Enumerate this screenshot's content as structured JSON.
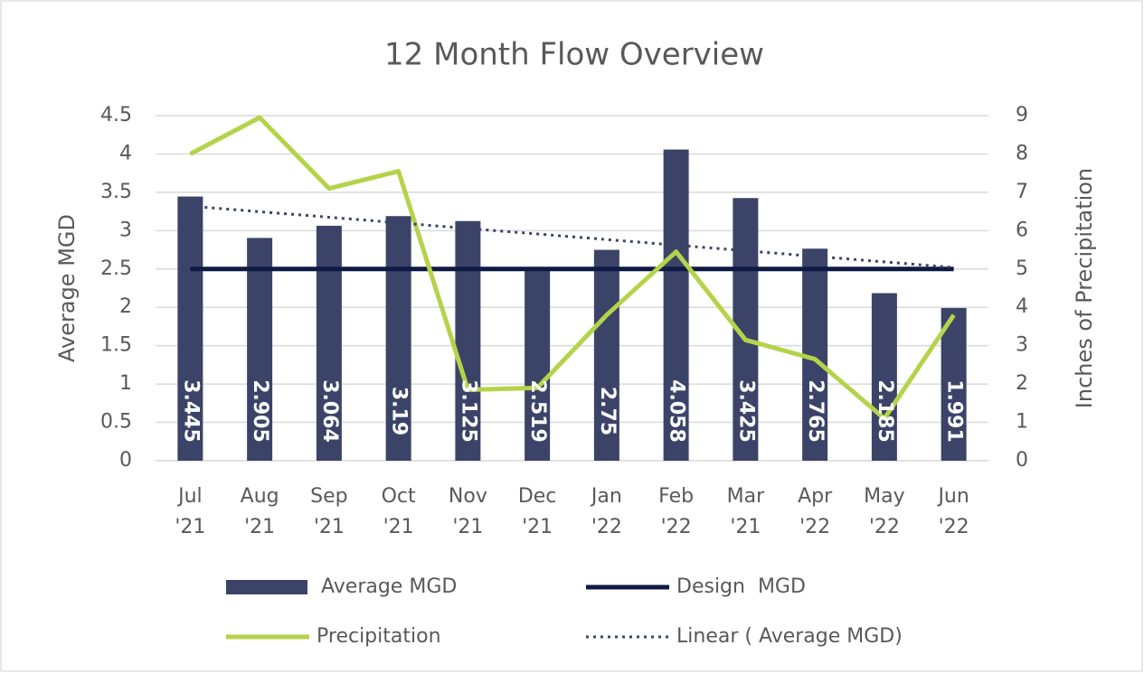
{
  "chart_data": {
    "type": "bar",
    "title": "12 Month Flow Overview",
    "y_label": "Average MGD",
    "y2_label": "Inches of Precipitation",
    "categories": [
      [
        "Jul",
        "'21"
      ],
      [
        "Aug",
        "'21"
      ],
      [
        "Sep",
        "'21"
      ],
      [
        "Oct",
        "'21"
      ],
      [
        "Nov",
        "'21"
      ],
      [
        "Dec",
        "'21"
      ],
      [
        "Jan",
        "'22"
      ],
      [
        "Feb",
        "'22"
      ],
      [
        "Mar",
        "'21"
      ],
      [
        "Apr",
        "'22"
      ],
      [
        "May",
        "'22"
      ],
      [
        "Jun",
        "'22"
      ]
    ],
    "series": [
      {
        "name": "Average MGD",
        "type": "bar",
        "color": "#3b4468",
        "values": [
          3.445,
          2.905,
          3.064,
          3.19,
          3.125,
          2.519,
          2.75,
          4.058,
          3.425,
          2.765,
          2.185,
          1.991
        ]
      },
      {
        "name": "Design  MGD",
        "type": "line",
        "color": "#0f1a44",
        "values": [
          2.5,
          2.5,
          2.5,
          2.5,
          2.5,
          2.5,
          2.5,
          2.5,
          2.5,
          2.5,
          2.5,
          2.5
        ]
      },
      {
        "name": "Precipitation",
        "type": "line",
        "color": "#b5d34a",
        "axis": "y2",
        "values": [
          8.0,
          8.95,
          7.1,
          7.55,
          1.85,
          1.9,
          3.8,
          5.45,
          3.15,
          2.65,
          1.1,
          3.8
        ]
      },
      {
        "name": "Linear ( Average MGD)",
        "type": "line",
        "dashed": true,
        "color": "#3b4468",
        "values": [
          3.32,
          3.247,
          3.175,
          3.102,
          3.029,
          2.957,
          2.884,
          2.811,
          2.738,
          2.665,
          2.593,
          2.52
        ]
      }
    ],
    "ylim": [
      0,
      4.5
    ],
    "yticks": [
      0,
      0.5,
      1,
      1.5,
      2,
      2.5,
      3,
      3.5,
      4,
      4.5
    ],
    "y2lim": [
      0,
      9
    ],
    "y2ticks": [
      0,
      1,
      2,
      3,
      4,
      5,
      6,
      7,
      8,
      9
    ],
    "grid": true,
    "legend": "bottom"
  }
}
